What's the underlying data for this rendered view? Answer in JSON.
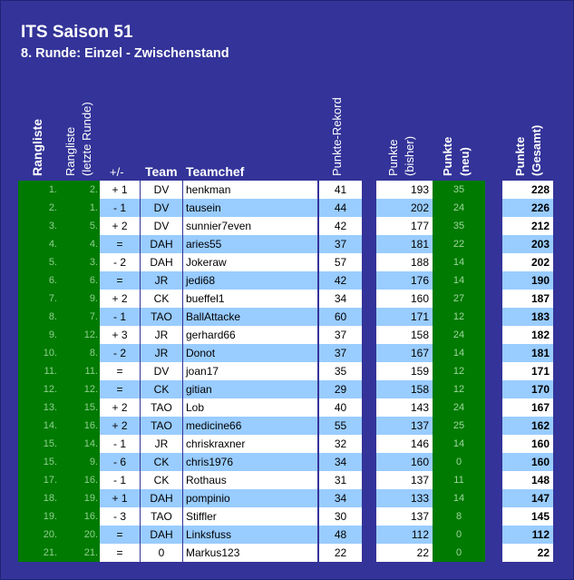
{
  "title": "ITS Saison 51",
  "subtitle": "8. Runde: Einzel - Zwischenstand",
  "headers": {
    "rangliste": "Rangliste",
    "rangliste_alt_1": "Rangliste",
    "rangliste_alt_2": "(letzte Runde)",
    "change": "+/-",
    "team": "Team",
    "teamchef": "Teamchef",
    "rekord": "Punkte-Rekord",
    "bisher_1": "Punkte",
    "bisher_2": "(bisher)",
    "neu_1": "Punkte",
    "neu_2": "(neu)",
    "gesamt_1": "Punkte",
    "gesamt_2": "(Gesamt)"
  },
  "rows": [
    {
      "rank": "1.",
      "prev": "2.",
      "chg": "+ 1",
      "team": "DV",
      "chef": "henkman",
      "rekord": "41",
      "bisher": "193",
      "neu": "35",
      "gesamt": "228"
    },
    {
      "rank": "2.",
      "prev": "1.",
      "chg": "- 1",
      "team": "DV",
      "chef": "tausein",
      "rekord": "44",
      "bisher": "202",
      "neu": "24",
      "gesamt": "226"
    },
    {
      "rank": "3.",
      "prev": "5.",
      "chg": "+ 2",
      "team": "DV",
      "chef": "sunnier7even",
      "rekord": "42",
      "bisher": "177",
      "neu": "35",
      "gesamt": "212"
    },
    {
      "rank": "4.",
      "prev": "4.",
      "chg": "=",
      "team": "DAH",
      "chef": "aries55",
      "rekord": "37",
      "bisher": "181",
      "neu": "22",
      "gesamt": "203"
    },
    {
      "rank": "5.",
      "prev": "3.",
      "chg": "- 2",
      "team": "DAH",
      "chef": "Jokeraw",
      "rekord": "57",
      "bisher": "188",
      "neu": "14",
      "gesamt": "202"
    },
    {
      "rank": "6.",
      "prev": "6.",
      "chg": "=",
      "team": "JR",
      "chef": "jedi68",
      "rekord": "42",
      "bisher": "176",
      "neu": "14",
      "gesamt": "190"
    },
    {
      "rank": "7.",
      "prev": "9.",
      "chg": "+ 2",
      "team": "CK",
      "chef": "bueffel1",
      "rekord": "34",
      "bisher": "160",
      "neu": "27",
      "gesamt": "187"
    },
    {
      "rank": "8.",
      "prev": "7.",
      "chg": "- 1",
      "team": "TAO",
      "chef": "BallAttacke",
      "rekord": "60",
      "bisher": "171",
      "neu": "12",
      "gesamt": "183"
    },
    {
      "rank": "9.",
      "prev": "12.",
      "chg": "+ 3",
      "team": "JR",
      "chef": "gerhard66",
      "rekord": "37",
      "bisher": "158",
      "neu": "24",
      "gesamt": "182"
    },
    {
      "rank": "10.",
      "prev": "8.",
      "chg": "- 2",
      "team": "JR",
      "chef": "Donot",
      "rekord": "37",
      "bisher": "167",
      "neu": "14",
      "gesamt": "181"
    },
    {
      "rank": "11.",
      "prev": "11.",
      "chg": "=",
      "team": "DV",
      "chef": "joan17",
      "rekord": "35",
      "bisher": "159",
      "neu": "12",
      "gesamt": "171"
    },
    {
      "rank": "12.",
      "prev": "12.",
      "chg": "=",
      "team": "CK",
      "chef": "gitian",
      "rekord": "29",
      "bisher": "158",
      "neu": "12",
      "gesamt": "170"
    },
    {
      "rank": "13.",
      "prev": "15.",
      "chg": "+ 2",
      "team": "TAO",
      "chef": "Lob",
      "rekord": "40",
      "bisher": "143",
      "neu": "24",
      "gesamt": "167"
    },
    {
      "rank": "14.",
      "prev": "16.",
      "chg": "+ 2",
      "team": "TAO",
      "chef": "medicine66",
      "rekord": "55",
      "bisher": "137",
      "neu": "25",
      "gesamt": "162"
    },
    {
      "rank": "15.",
      "prev": "14.",
      "chg": "- 1",
      "team": "JR",
      "chef": "chriskraxner",
      "rekord": "32",
      "bisher": "146",
      "neu": "14",
      "gesamt": "160"
    },
    {
      "rank": "15.",
      "prev": "9.",
      "chg": "- 6",
      "team": "CK",
      "chef": "chris1976",
      "rekord": "34",
      "bisher": "160",
      "neu": "0",
      "gesamt": "160"
    },
    {
      "rank": "17.",
      "prev": "16.",
      "chg": "- 1",
      "team": "CK",
      "chef": "Rothaus",
      "rekord": "31",
      "bisher": "137",
      "neu": "11",
      "gesamt": "148"
    },
    {
      "rank": "18.",
      "prev": "19.",
      "chg": "+ 1",
      "team": "DAH",
      "chef": "pompinio",
      "rekord": "34",
      "bisher": "133",
      "neu": "14",
      "gesamt": "147"
    },
    {
      "rank": "19.",
      "prev": "16.",
      "chg": "- 3",
      "team": "TAO",
      "chef": "Stiffler",
      "rekord": "30",
      "bisher": "137",
      "neu": "8",
      "gesamt": "145"
    },
    {
      "rank": "20.",
      "prev": "20.",
      "chg": "=",
      "team": "DAH",
      "chef": "Linksfuss",
      "rekord": "48",
      "bisher": "112",
      "neu": "0",
      "gesamt": "112"
    },
    {
      "rank": "21.",
      "prev": "21.",
      "chg": "=",
      "team": "0",
      "chef": "Markus123",
      "rekord": "22",
      "bisher": "22",
      "neu": "0",
      "gesamt": "22"
    }
  ]
}
